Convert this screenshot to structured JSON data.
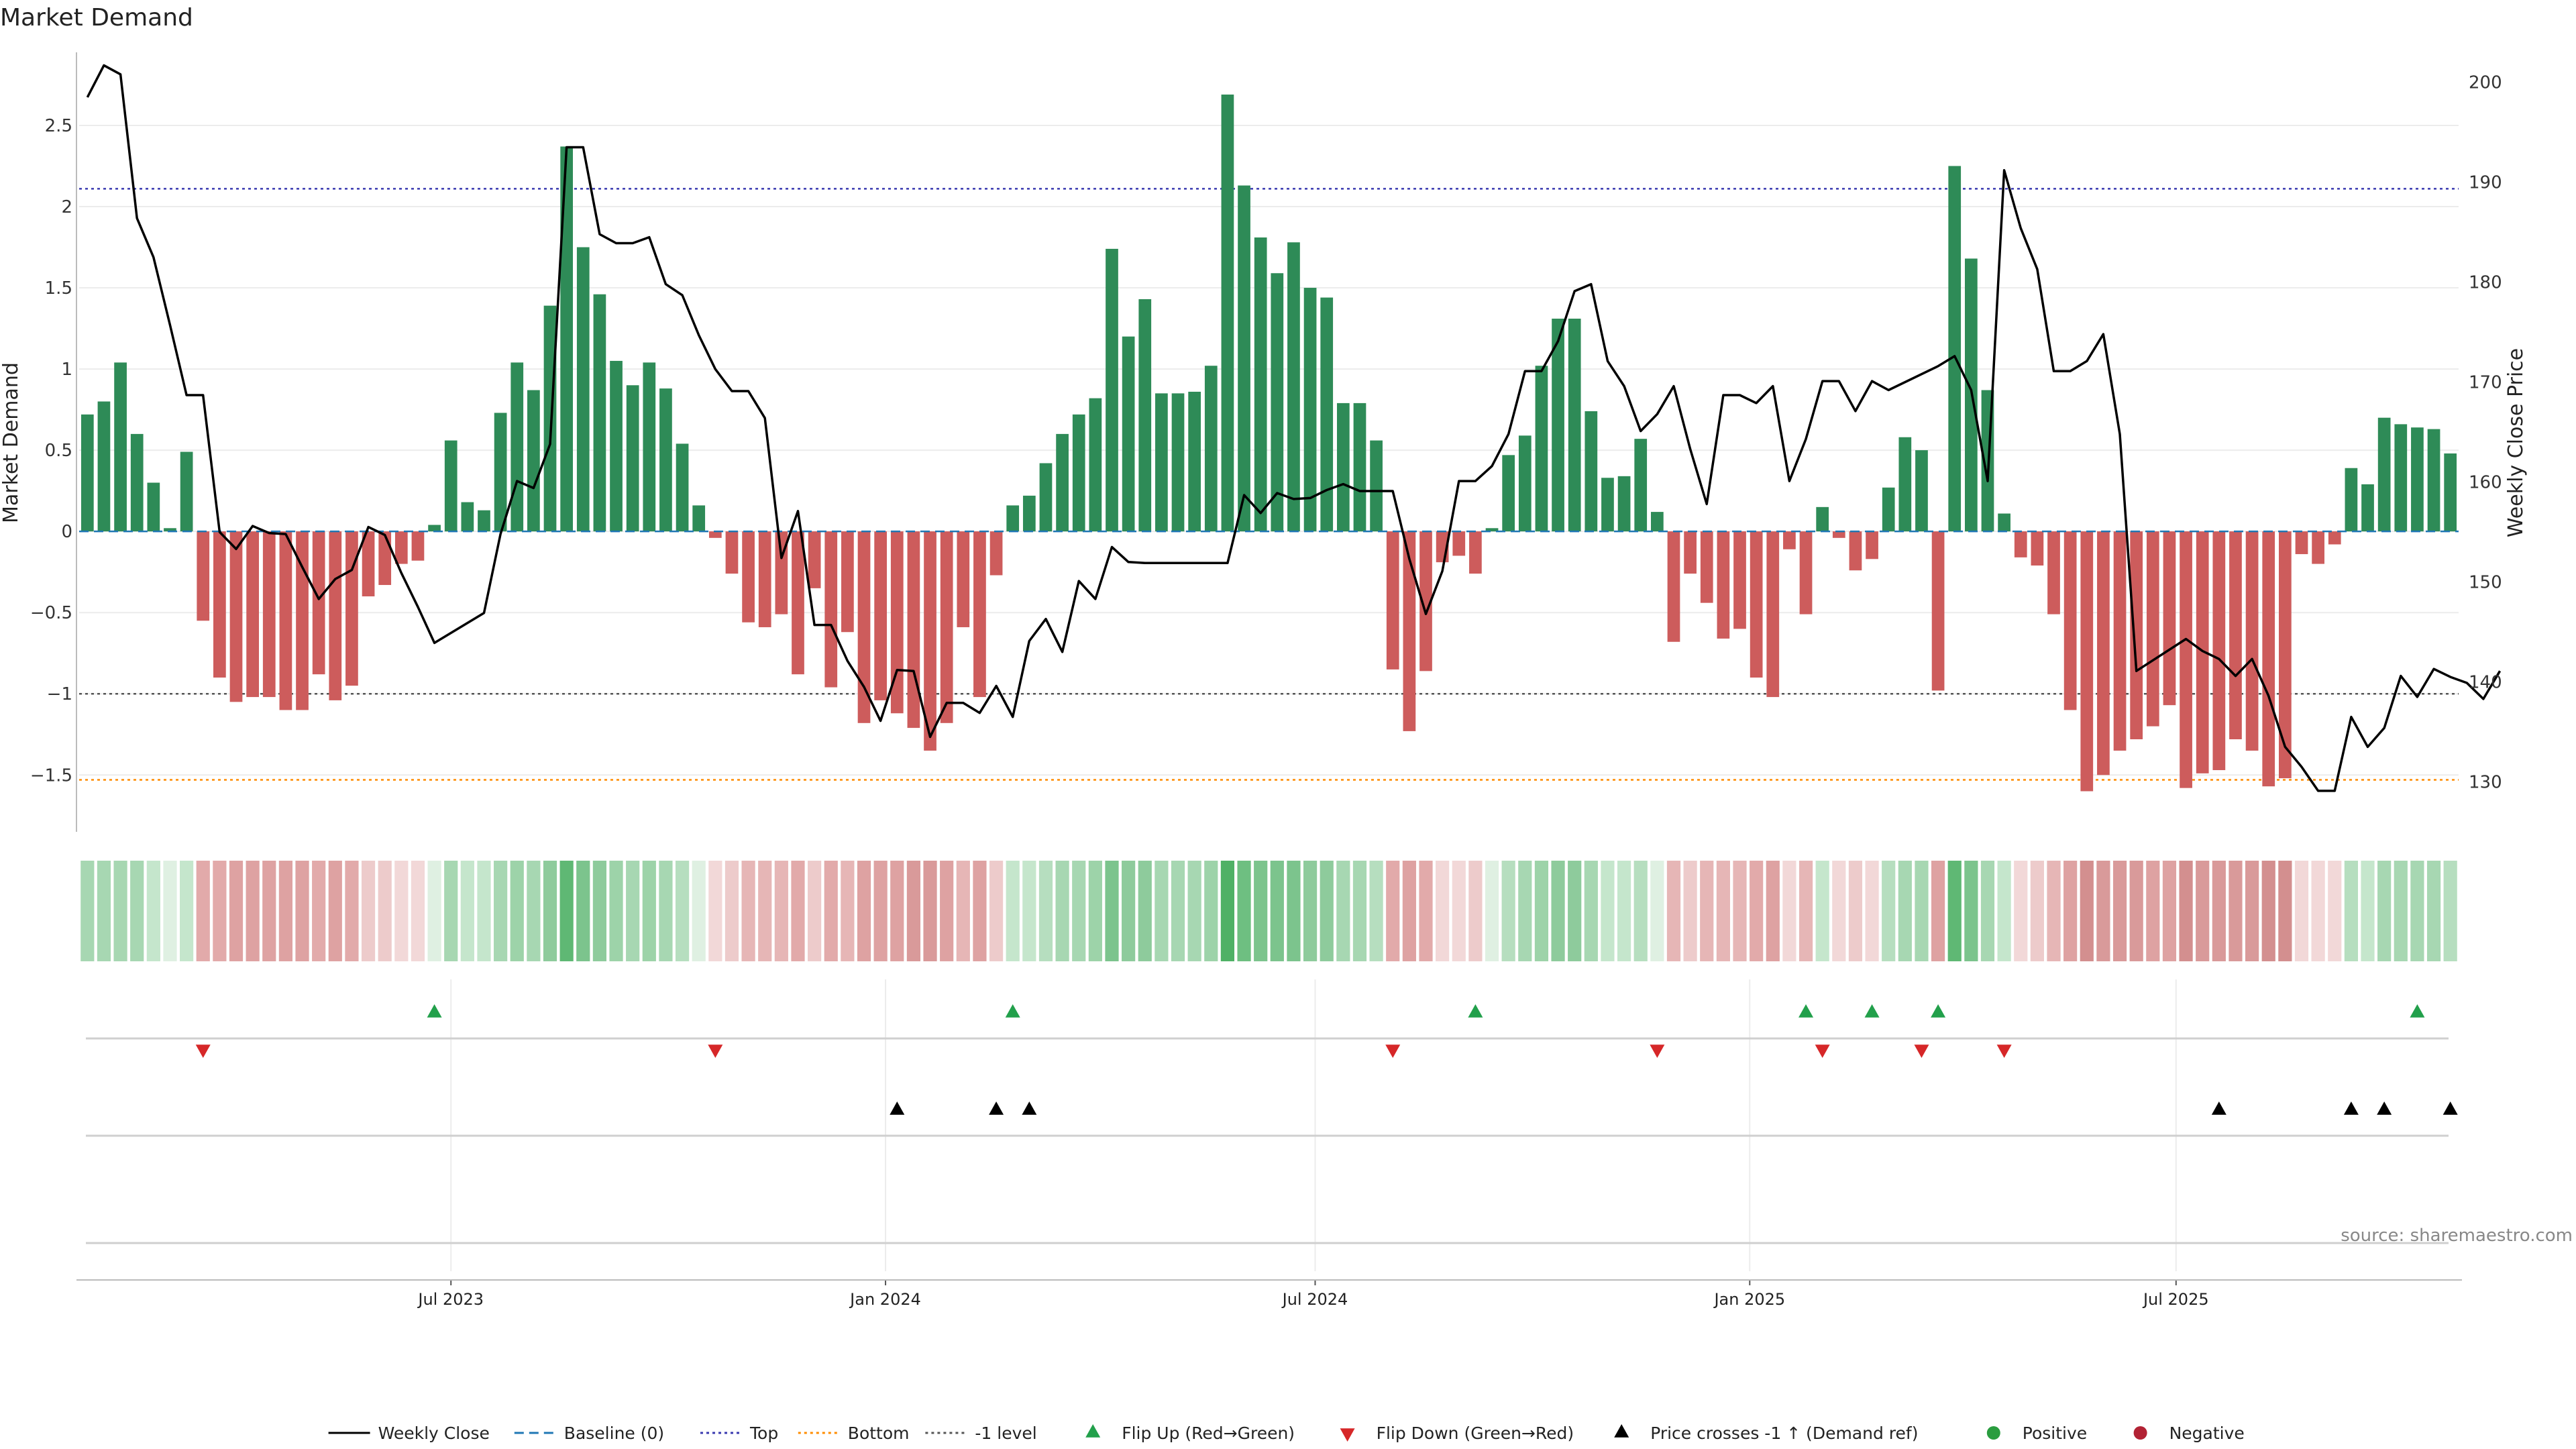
{
  "chart_data": {
    "type": "bar",
    "title": "Market Demand",
    "ylabel_left": "Market Demand",
    "ylabel_right": "Weekly Close Price",
    "ylim_left": [
      -1.85,
      2.95
    ],
    "ylim_right": [
      125,
      203
    ],
    "yticks_left": [
      {
        "value": 2.5,
        "label": "2.5"
      },
      {
        "value": 2,
        "label": "2"
      },
      {
        "value": 1.5,
        "label": "1.5"
      },
      {
        "value": 1,
        "label": "1"
      },
      {
        "value": 0.5,
        "label": "0.5"
      },
      {
        "value": 0,
        "label": "0"
      },
      {
        "value": -0.5,
        "label": "−0.5"
      },
      {
        "value": -1,
        "label": "−1"
      },
      {
        "value": -1.5,
        "label": "−1.5"
      }
    ],
    "yticks_right": [
      {
        "value": 200,
        "label": "200"
      },
      {
        "value": 190,
        "label": "190"
      },
      {
        "value": 180,
        "label": "180"
      },
      {
        "value": 170,
        "label": "170"
      },
      {
        "value": 160,
        "label": "160"
      },
      {
        "value": 150,
        "label": "150"
      },
      {
        "value": 140,
        "label": "140"
      },
      {
        "value": 130,
        "label": "130"
      }
    ],
    "xticks": [
      {
        "week": 22,
        "label": "Jul 2023"
      },
      {
        "week": 48.3,
        "label": "Jan 2024"
      },
      {
        "week": 74.3,
        "label": "Jul 2024"
      },
      {
        "week": 100.6,
        "label": "Jan 2025"
      },
      {
        "week": 126.4,
        "label": "Jul 2025"
      }
    ],
    "reference_lines": {
      "top": 2.11,
      "bottom": -1.53,
      "minus_one": -1,
      "baseline": 0
    },
    "demand": [
      0.72,
      0.8,
      1.04,
      0.6,
      0.3,
      0.02,
      0.49,
      -0.55,
      -0.9,
      -1.05,
      -1.02,
      -1.02,
      -1.1,
      -1.1,
      -0.88,
      -1.04,
      -0.95,
      -0.4,
      -0.33,
      -0.2,
      -0.18,
      0.04,
      0.56,
      0.18,
      0.13,
      0.73,
      1.04,
      0.87,
      1.39,
      2.37,
      1.75,
      1.46,
      1.05,
      0.9,
      1.04,
      0.88,
      0.54,
      0.16,
      -0.04,
      -0.26,
      -0.56,
      -0.59,
      -0.51,
      -0.88,
      -0.35,
      -0.96,
      -0.62,
      -1.18,
      -1.04,
      -1.12,
      -1.21,
      -1.35,
      -1.18,
      -0.59,
      -1.02,
      -0.27,
      0.16,
      0.22,
      0.42,
      0.6,
      0.72,
      0.82,
      1.74,
      1.2,
      1.43,
      0.85,
      0.85,
      0.86,
      1.02,
      2.69,
      2.13,
      1.81,
      1.59,
      1.78,
      1.5,
      1.44,
      0.79,
      0.79,
      0.56,
      -0.85,
      -1.23,
      -0.86,
      -0.19,
      -0.15,
      -0.26,
      0.02,
      0.47,
      0.59,
      1.02,
      1.31,
      1.31,
      0.74,
      0.33,
      0.34,
      0.57,
      0.12,
      -0.68,
      -0.26,
      -0.44,
      -0.66,
      -0.6,
      -0.9,
      -1.02,
      -0.11,
      -0.51,
      0.15,
      -0.04,
      -0.24,
      -0.17,
      0.27,
      0.58,
      0.5,
      -0.98,
      2.25,
      1.68,
      0.87,
      0.11,
      -0.16,
      -0.21,
      -0.51,
      -1.1,
      -1.6,
      -1.5,
      -1.35,
      -1.28,
      -1.2,
      -1.07,
      -1.58,
      -1.49,
      -1.47,
      -1.28,
      -1.35,
      -1.57,
      -1.52,
      -0.14,
      -0.2,
      -0.08,
      0.39,
      0.29,
      0.7,
      0.66,
      0.64,
      0.63,
      0.48
    ],
    "weekly_close": [
      [
        0,
        198.5
      ],
      [
        1,
        201.7
      ],
      [
        2,
        200.8
      ],
      [
        3,
        186.4
      ],
      [
        4,
        182.5
      ],
      [
        5,
        175.7
      ],
      [
        6,
        168.7
      ],
      [
        7,
        168.7
      ],
      [
        8,
        155
      ],
      [
        9,
        153.3
      ],
      [
        10,
        155.6
      ],
      [
        11,
        154.9
      ],
      [
        12,
        154.8
      ],
      [
        13,
        151.5
      ],
      [
        14,
        148.3
      ],
      [
        15,
        150.3
      ],
      [
        16,
        151.2
      ],
      [
        17,
        155.5
      ],
      [
        18,
        154.7
      ],
      [
        19,
        150.9
      ],
      [
        20,
        147.5
      ],
      [
        21,
        143.9
      ],
      [
        24,
        146.9
      ],
      [
        25,
        154.8
      ],
      [
        26,
        160.1
      ],
      [
        27,
        159.4
      ],
      [
        28,
        163.8
      ],
      [
        29,
        193.5
      ],
      [
        30,
        193.5
      ],
      [
        31,
        184.8
      ],
      [
        32,
        183.9
      ],
      [
        33,
        183.9
      ],
      [
        34,
        184.5
      ],
      [
        35,
        179.8
      ],
      [
        36,
        178.7
      ],
      [
        37,
        174.7
      ],
      [
        38,
        171.3
      ],
      [
        39,
        169.1
      ],
      [
        40,
        169.1
      ],
      [
        41,
        166.4
      ],
      [
        42,
        152.4
      ],
      [
        43,
        157.1
      ],
      [
        44,
        145.7
      ],
      [
        45,
        145.7
      ],
      [
        46,
        142.1
      ],
      [
        47,
        139.5
      ],
      [
        48,
        136.1
      ],
      [
        49,
        141.2
      ],
      [
        50,
        141.1
      ],
      [
        51,
        134.5
      ],
      [
        52,
        137.9
      ],
      [
        53,
        137.9
      ],
      [
        54,
        136.9
      ],
      [
        55,
        139.6
      ],
      [
        56,
        136.5
      ],
      [
        57,
        144.1
      ],
      [
        58,
        146.3
      ],
      [
        59,
        143
      ],
      [
        60,
        150.1
      ],
      [
        61,
        148.3
      ],
      [
        62,
        153.5
      ],
      [
        63,
        152
      ],
      [
        64,
        151.9
      ],
      [
        69,
        151.9
      ],
      [
        70,
        158.7
      ],
      [
        71,
        156.9
      ],
      [
        72,
        158.9
      ],
      [
        73,
        158.3
      ],
      [
        74,
        158.4
      ],
      [
        75,
        159.2
      ],
      [
        76,
        159.8
      ],
      [
        77,
        159.1
      ],
      [
        79,
        159.1
      ],
      [
        80,
        152.3
      ],
      [
        81,
        146.8
      ],
      [
        82,
        151.1
      ],
      [
        83,
        160.1
      ],
      [
        84,
        160.1
      ],
      [
        85,
        161.6
      ],
      [
        86,
        164.8
      ],
      [
        87,
        171.1
      ],
      [
        88,
        171.1
      ],
      [
        89,
        174.1
      ],
      [
        90,
        179.1
      ],
      [
        91,
        179.8
      ],
      [
        92,
        172.1
      ],
      [
        93,
        169.6
      ],
      [
        94,
        165.1
      ],
      [
        95,
        166.8
      ],
      [
        96,
        169.6
      ],
      [
        97,
        163.3
      ],
      [
        98,
        157.8
      ],
      [
        99,
        168.7
      ],
      [
        100,
        168.7
      ],
      [
        101,
        167.9
      ],
      [
        102,
        169.6
      ],
      [
        103,
        160.1
      ],
      [
        104,
        164.3
      ],
      [
        105,
        170.1
      ],
      [
        106,
        170.1
      ],
      [
        107,
        167.1
      ],
      [
        108,
        170.1
      ],
      [
        109,
        169.2
      ],
      [
        112,
        171.6
      ],
      [
        113,
        172.6
      ],
      [
        114,
        169.2
      ],
      [
        115,
        160.1
      ],
      [
        116,
        191.2
      ],
      [
        117,
        185.4
      ],
      [
        118,
        181.3
      ],
      [
        119,
        171.1
      ],
      [
        120,
        171.1
      ],
      [
        121,
        172.1
      ],
      [
        122,
        174.8
      ],
      [
        123,
        164.8
      ],
      [
        124,
        141.1
      ],
      [
        127,
        144.3
      ],
      [
        128,
        143.1
      ],
      [
        129,
        142.3
      ],
      [
        130,
        140.6
      ],
      [
        131,
        142.3
      ],
      [
        132,
        138.6
      ],
      [
        133,
        133.5
      ],
      [
        134,
        131.5
      ],
      [
        135,
        129.1
      ],
      [
        136,
        129.1
      ],
      [
        137,
        136.5
      ],
      [
        138,
        133.5
      ],
      [
        139,
        135.4
      ],
      [
        140,
        140.6
      ],
      [
        141,
        138.5
      ],
      [
        142,
        141.3
      ],
      [
        143,
        140.5
      ],
      [
        144,
        139.9
      ],
      [
        145,
        138.3
      ],
      [
        146,
        141.1
      ]
    ],
    "band_shades": [
      "#a7d7b2",
      "#a7d7b2",
      "#a7d7b2",
      "#a7d7b2",
      "#c5e6cc",
      "#dff0e2",
      "#c5e6cc",
      "#e2aaaa",
      "#e2aaaa",
      "#dea2a2",
      "#dea2a2",
      "#dea2a2",
      "#dea2a2",
      "#dea2a2",
      "#e2aaaa",
      "#dea2a2",
      "#e2aaaa",
      "#edcbcb",
      "#edcbcb",
      "#f2d8d8",
      "#f2d8d8",
      "#dff0e2",
      "#a7d7b2",
      "#c5e6cc",
      "#c5e6cc",
      "#a7d7b2",
      "#9dd3a9",
      "#a7d7b2",
      "#8ecb9c",
      "#5fb874",
      "#7cc48d",
      "#8ecb9c",
      "#9dd3a9",
      "#a7d7b2",
      "#9dd3a9",
      "#a7d7b2",
      "#b6deBF",
      "#dff0e2",
      "#f2d8d8",
      "#edcbcb",
      "#e6b6b6",
      "#e6b6b6",
      "#e6b6b6",
      "#e2aaaa",
      "#edcbcb",
      "#e2aaaa",
      "#e6b6b6",
      "#dea2a2",
      "#dea2a2",
      "#dea2a2",
      "#d99a9a",
      "#d99a9a",
      "#dea2a2",
      "#e6b6b6",
      "#dea2a2",
      "#edcbcb",
      "#c5e6cc",
      "#c5e6cc",
      "#b6debf",
      "#a7d7b2",
      "#a7d7b2",
      "#9dd3a9",
      "#7cc48d",
      "#8ecb9c",
      "#8ecb9c",
      "#a7d7b2",
      "#a7d7b2",
      "#a7d7b2",
      "#9dd3a9",
      "#4fb166",
      "#6ebf81",
      "#7cc48d",
      "#7cc48d",
      "#7cc48d",
      "#8ecb9c",
      "#8ecb9c",
      "#a7d7b2",
      "#a7d7b2",
      "#b6debf",
      "#e2aaaa",
      "#dea2a2",
      "#e2aaaa",
      "#f2d8d8",
      "#f2d8d8",
      "#edcbcb",
      "#dff0e2",
      "#b6debf",
      "#a7d7b2",
      "#9dd3a9",
      "#8ecb9c",
      "#8ecb9c",
      "#a7d7b2",
      "#c5e6cc",
      "#c5e6cc",
      "#b6debf",
      "#dff0e2",
      "#e6b6b6",
      "#edcbcb",
      "#e6b6b6",
      "#e6b6b6",
      "#e6b6b6",
      "#e2aaaa",
      "#dea2a2",
      "#f2d8d8",
      "#e6b6b6",
      "#c5e6cc",
      "#f2d8d8",
      "#edcbcb",
      "#f2d8d8",
      "#b6debf",
      "#a7d7b2",
      "#a7d7b2",
      "#dea2a2",
      "#5fb874",
      "#7cc48d",
      "#a7d7b2",
      "#c5e6cc",
      "#f2d8d8",
      "#edcbcb",
      "#e6b6b6",
      "#dea2a2",
      "#d38f8f",
      "#d99a9a",
      "#d99a9a",
      "#d99a9a",
      "#dea2a2",
      "#dea2a2",
      "#d38f8f",
      "#d99a9a",
      "#d99a9a",
      "#d99a9a",
      "#d99a9a",
      "#d38f8f",
      "#d38f8f",
      "#f2d8d8",
      "#f2d8d8",
      "#f2d8d8",
      "#b6debf",
      "#c5e6cc",
      "#a7d7b2",
      "#a7d7b2",
      "#a7d7b2",
      "#a7d7b2",
      "#b6debf"
    ],
    "flip_up_weeks": [
      21,
      56,
      84,
      104,
      108,
      112,
      141
    ],
    "flip_down_weeks": [
      7,
      38,
      79,
      95,
      105,
      111,
      116
    ],
    "price_cross_weeks": [
      49,
      55,
      57,
      129,
      137,
      139,
      143
    ],
    "colors": {
      "positive": "#2e8b57",
      "negative": "#cd5c5c",
      "price_line": "#000000",
      "baseline": "#1f77b4",
      "top": "#3a3ab0",
      "bottom": "#ff8c00",
      "minus_one": "#555555",
      "flip_up": "#22a04b",
      "flip_down": "#d62728",
      "price_cross": "#000000",
      "positive_dot": "#2a9d3f",
      "negative_dot": "#b22234"
    },
    "legend": [
      {
        "kind": "line-solid",
        "label": "Weekly Close"
      },
      {
        "kind": "line-dash",
        "label": "Baseline (0)"
      },
      {
        "kind": "line-dot-top",
        "label": "Top"
      },
      {
        "kind": "line-dot-bottom",
        "label": "Bottom"
      },
      {
        "kind": "line-dot-minus",
        "label": "-1 level"
      },
      {
        "kind": "tri-up-green",
        "label": "Flip Up (Red→Green)"
      },
      {
        "kind": "tri-down-red",
        "label": "Flip Down (Green→Red)"
      },
      {
        "kind": "tri-up-black",
        "label": "Price crosses -1 ↑ (Demand ref)"
      },
      {
        "kind": "dot-green",
        "label": "Positive"
      },
      {
        "kind": "dot-red",
        "label": "Negative"
      }
    ],
    "legend_position": "bottom-center",
    "source": "source: sharemaestro.com"
  }
}
